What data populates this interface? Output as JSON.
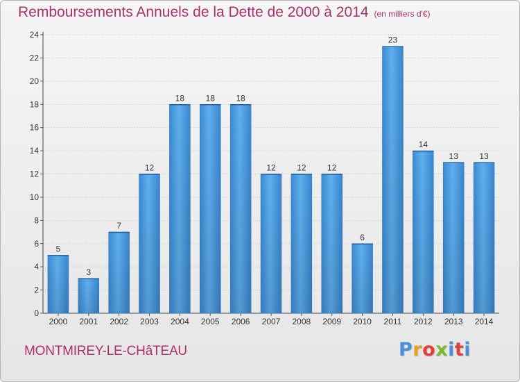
{
  "header": {
    "title": "Remboursements Annuels de la Dette de 2000 à 2014",
    "unit": "(en milliers d'€)"
  },
  "footer": {
    "commune": "MONTMIREY-LE-CHâTEAU",
    "logo": [
      "P",
      "r",
      "o",
      "x",
      "i",
      "t",
      "i"
    ],
    "logo_colors": [
      "#4a90d9",
      "#e8a020",
      "#e04040",
      "#7ab830",
      "#4a90d9",
      "#e04040",
      "#4a90d9"
    ]
  },
  "chart_data": {
    "type": "bar",
    "title": "Remboursements Annuels de la Dette de 2000 à 2014",
    "xlabel": "",
    "ylabel": "",
    "categories": [
      "2000",
      "2001",
      "2002",
      "2003",
      "2004",
      "2005",
      "2006",
      "2007",
      "2008",
      "2009",
      "2010",
      "2011",
      "2012",
      "2013",
      "2014"
    ],
    "values": [
      5,
      3,
      7,
      12,
      18,
      18,
      18,
      12,
      12,
      12,
      6,
      23,
      14,
      13,
      13
    ],
    "ylim": [
      0,
      24
    ],
    "yticks": [
      0,
      2,
      4,
      6,
      8,
      10,
      12,
      14,
      16,
      18,
      20,
      22,
      24
    ],
    "grid": true,
    "bar_color": "#4a9de0"
  }
}
